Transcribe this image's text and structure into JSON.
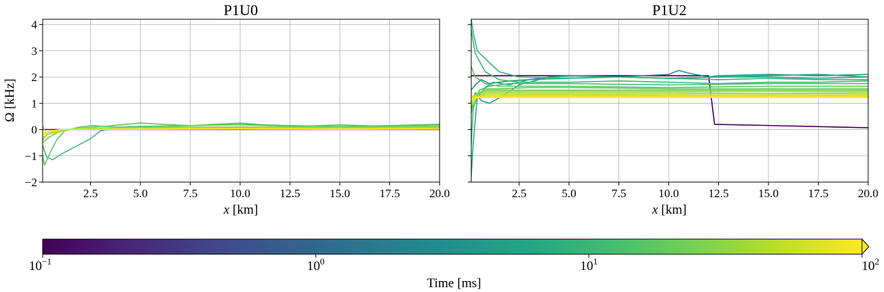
{
  "chart_data": [
    {
      "type": "line",
      "title": "P1U0",
      "xlabel_var": "x",
      "xlabel_unit": " [km]",
      "ylabel": "Ω [kHz]",
      "xlim": [
        0.1,
        20.0
      ],
      "ylim": [
        -2,
        4.2
      ],
      "xticks": [
        2.5,
        5.0,
        7.5,
        10.0,
        12.5,
        15.0,
        17.5,
        20.0
      ],
      "xtick_labels": [
        "2.5",
        "5.0",
        "7.5",
        "10.0",
        "12.5",
        "15.0",
        "17.5",
        "20.0"
      ],
      "yticks": [
        -2,
        -1,
        0,
        1,
        2,
        3,
        4
      ],
      "ytick_labels": [
        "−2",
        "−1",
        "0",
        "1",
        "2",
        "3",
        "4"
      ],
      "grid": true,
      "series": [
        {
          "time_ms": 0.1,
          "x": [
            0.1,
            2.0,
            20.0
          ],
          "y": [
            0.0,
            0.0,
            0.0
          ]
        },
        {
          "time_ms": 12,
          "x": [
            0.1,
            0.3,
            0.6,
            1.0,
            1.5,
            2.0,
            2.5,
            3.0,
            4.0,
            5.0,
            7.5,
            10.0,
            12.5,
            15.0,
            17.5,
            20.0
          ],
          "y": [
            -0.6,
            -1.05,
            -1.15,
            -0.95,
            -0.75,
            -0.55,
            -0.35,
            -0.05,
            0.1,
            0.12,
            0.15,
            0.2,
            0.15,
            0.12,
            0.15,
            0.2
          ]
        },
        {
          "time_ms": 16,
          "x": [
            0.1,
            0.2,
            0.4,
            0.8,
            1.2,
            2.0,
            2.6,
            3.2,
            4.0,
            5.0,
            6.0,
            7.5,
            10.0,
            12.5,
            15.0,
            17.5,
            20.0
          ],
          "y": [
            -1.0,
            -1.35,
            -1.0,
            -0.4,
            -0.05,
            0.1,
            0.15,
            0.12,
            0.18,
            0.25,
            0.2,
            0.15,
            0.25,
            0.1,
            0.18,
            0.12,
            0.2
          ]
        },
        {
          "time_ms": 22,
          "x": [
            0.1,
            0.4,
            1.0,
            2.0,
            3.0,
            5.0,
            7.5,
            10.0,
            12.5,
            15.0,
            17.5,
            20.0
          ],
          "y": [
            -0.5,
            -0.3,
            -0.05,
            0.05,
            0.12,
            0.08,
            0.15,
            0.18,
            0.12,
            0.1,
            0.12,
            0.15
          ]
        },
        {
          "time_ms": 30,
          "x": [
            0.1,
            0.3,
            0.8,
            1.5,
            2.5,
            5.0,
            10.0,
            15.0,
            20.0
          ],
          "y": [
            -0.4,
            -0.2,
            -0.05,
            0.02,
            0.05,
            0.08,
            0.1,
            0.08,
            0.1
          ]
        },
        {
          "time_ms": 40,
          "x": [
            0.1,
            0.3,
            0.8,
            1.5,
            2.5,
            5.0,
            10.0,
            15.0,
            20.0
          ],
          "y": [
            0.15,
            -0.2,
            -0.1,
            0.0,
            0.03,
            0.05,
            0.06,
            0.05,
            0.06
          ]
        },
        {
          "time_ms": 55,
          "x": [
            0.1,
            0.4,
            1.0,
            2.0,
            5.0,
            10.0,
            15.0,
            20.0
          ],
          "y": [
            -0.3,
            -0.15,
            0.0,
            0.02,
            0.03,
            0.05,
            0.04,
            0.05
          ]
        },
        {
          "time_ms": 75,
          "x": [
            0.1,
            0.5,
            1.0,
            2.0,
            5.0,
            10.0,
            15.0,
            20.0
          ],
          "y": [
            -0.2,
            -0.1,
            0.0,
            0.0,
            0.02,
            0.03,
            0.02,
            0.03
          ]
        },
        {
          "time_ms": 100,
          "x": [
            0.1,
            0.5,
            1.0,
            2.0,
            5.0,
            10.0,
            15.0,
            20.0
          ],
          "y": [
            -0.15,
            -0.05,
            0.0,
            0.01,
            0.01,
            0.02,
            0.01,
            0.02
          ]
        }
      ]
    },
    {
      "type": "line",
      "title": "P1U2",
      "xlabel_var": "x",
      "xlabel_unit": " [km]",
      "ylabel": "",
      "xlim": [
        0.1,
        20.0
      ],
      "ylim": [
        -2,
        4.2
      ],
      "xticks": [
        2.5,
        5.0,
        7.5,
        10.0,
        12.5,
        15.0,
        17.5,
        20.0
      ],
      "xtick_labels": [
        "2.5",
        "5.0",
        "7.5",
        "10.0",
        "12.5",
        "15.0",
        "17.5",
        "20.0"
      ],
      "yticks": [
        -2,
        -1,
        0,
        1,
        2,
        3,
        4
      ],
      "grid": true,
      "series": [
        {
          "time_ms": 0.1,
          "x": [
            0.1,
            12.0,
            12.3,
            20.0
          ],
          "y": [
            2.05,
            2.05,
            0.2,
            0.07
          ]
        },
        {
          "time_ms": 3,
          "x": [
            0.1,
            0.3,
            0.6,
            1.0,
            2.0,
            3.0,
            4.0,
            5.0,
            7.5,
            10.0,
            10.5,
            11.0,
            12.0,
            12.5,
            15.0,
            17.5,
            20.0
          ],
          "y": [
            1.5,
            1.7,
            1.9,
            1.75,
            1.85,
            1.9,
            2.0,
            2.05,
            2.0,
            2.1,
            2.25,
            2.15,
            2.0,
            2.05,
            2.1,
            2.05,
            2.1
          ]
        },
        {
          "time_ms": 5,
          "x": [
            0.1,
            0.3,
            0.6,
            1.0,
            1.5,
            2.5,
            4.0,
            5.5,
            7.5,
            10.0,
            12.5,
            15.0,
            17.5,
            20.0
          ],
          "y": [
            0.8,
            1.4,
            1.1,
            1.0,
            1.2,
            1.7,
            2.0,
            2.05,
            2.0,
            1.95,
            2.0,
            2.05,
            2.1,
            2.0
          ]
        },
        {
          "time_ms": 7,
          "x": [
            0.1,
            0.2,
            0.4,
            0.8,
            1.2,
            2.0,
            3.0,
            5.0,
            7.5,
            10.0,
            12.5,
            15.0,
            17.5,
            20.0
          ],
          "y": [
            -1.8,
            -0.5,
            1.2,
            1.6,
            1.8,
            1.7,
            1.9,
            1.95,
            2.0,
            1.95,
            2.0,
            2.0,
            1.95,
            2.0
          ]
        },
        {
          "time_ms": 9,
          "x": [
            0.1,
            0.2,
            0.4,
            0.8,
            1.5,
            2.5,
            5.0,
            7.5,
            10.0,
            12.5,
            15.0,
            17.5,
            20.0
          ],
          "y": [
            4.2,
            3.7,
            3.0,
            2.7,
            2.2,
            2.0,
            1.95,
            2.0,
            1.95,
            1.9,
            1.95,
            1.9,
            1.9
          ]
        },
        {
          "time_ms": 11,
          "x": [
            0.1,
            0.3,
            0.8,
            1.5,
            2.5,
            5.0,
            7.5,
            10.0,
            12.5,
            15.0,
            17.5,
            20.0
          ],
          "y": [
            3.8,
            2.9,
            2.2,
            1.9,
            1.8,
            1.8,
            1.85,
            1.8,
            1.75,
            1.8,
            1.8,
            1.85
          ]
        },
        {
          "time_ms": 13,
          "x": [
            0.1,
            0.2,
            0.5,
            1.0,
            2.0,
            5.0,
            10.0,
            15.0,
            20.0
          ],
          "y": [
            -0.6,
            0.8,
            1.5,
            1.65,
            1.75,
            1.75,
            1.7,
            1.75,
            1.75
          ]
        },
        {
          "time_ms": 16,
          "x": [
            0.1,
            0.3,
            0.8,
            1.5,
            3.0,
            5.0,
            10.0,
            15.0,
            20.0
          ],
          "y": [
            2.4,
            2.0,
            1.75,
            1.65,
            1.65,
            1.65,
            1.6,
            1.65,
            1.65
          ]
        },
        {
          "time_ms": 20,
          "x": [
            0.1,
            0.3,
            0.8,
            1.5,
            3.0,
            5.0,
            10.0,
            15.0,
            20.0
          ],
          "y": [
            0.6,
            1.3,
            1.55,
            1.55,
            1.6,
            1.6,
            1.55,
            1.55,
            1.55
          ]
        },
        {
          "time_ms": 25,
          "x": [
            0.1,
            0.3,
            0.8,
            1.5,
            3.0,
            5.0,
            10.0,
            15.0,
            20.0
          ],
          "y": [
            1.0,
            1.35,
            1.5,
            1.5,
            1.5,
            1.5,
            1.5,
            1.5,
            1.5
          ]
        },
        {
          "time_ms": 32,
          "x": [
            0.1,
            0.3,
            0.8,
            1.5,
            3.0,
            5.0,
            10.0,
            15.0,
            20.0
          ],
          "y": [
            1.2,
            1.3,
            1.45,
            1.45,
            1.45,
            1.45,
            1.45,
            1.45,
            1.45
          ]
        },
        {
          "time_ms": 40,
          "x": [
            0.1,
            0.3,
            0.8,
            1.5,
            3.0,
            5.0,
            10.0,
            15.0,
            20.0
          ],
          "y": [
            1.1,
            1.2,
            1.4,
            1.4,
            1.4,
            1.4,
            1.4,
            1.38,
            1.4
          ]
        },
        {
          "time_ms": 50,
          "x": [
            0.1,
            0.3,
            0.8,
            1.5,
            3.0,
            5.0,
            10.0,
            15.0,
            20.0
          ],
          "y": [
            0.9,
            1.2,
            1.35,
            1.35,
            1.35,
            1.35,
            1.35,
            1.35,
            1.35
          ]
        },
        {
          "time_ms": 62,
          "x": [
            0.1,
            0.3,
            0.8,
            1.5,
            3.0,
            5.0,
            10.0,
            15.0,
            20.0
          ],
          "y": [
            1.3,
            1.25,
            1.3,
            1.3,
            1.32,
            1.32,
            1.3,
            1.3,
            1.3
          ]
        },
        {
          "time_ms": 75,
          "x": [
            0.1,
            0.3,
            0.8,
            1.5,
            3.0,
            5.0,
            10.0,
            15.0,
            20.0
          ],
          "y": [
            1.0,
            1.2,
            1.28,
            1.28,
            1.28,
            1.28,
            1.27,
            1.27,
            1.27
          ]
        },
        {
          "time_ms": 88,
          "x": [
            0.1,
            0.3,
            0.8,
            1.5,
            3.0,
            5.0,
            10.0,
            15.0,
            20.0
          ],
          "y": [
            1.1,
            1.2,
            1.25,
            1.25,
            1.25,
            1.25,
            1.25,
            1.25,
            1.25
          ]
        },
        {
          "time_ms": 100,
          "x": [
            0.1,
            0.3,
            0.8,
            1.5,
            3.0,
            5.0,
            10.0,
            15.0,
            20.0
          ],
          "y": [
            1.2,
            1.22,
            1.22,
            1.22,
            1.22,
            1.22,
            1.22,
            1.22,
            1.22
          ]
        }
      ]
    }
  ],
  "colorbar": {
    "label": "Time [ms]",
    "scale": "log",
    "range": [
      0.1,
      100
    ],
    "extend": "max",
    "colormap": "viridis",
    "ticks": [
      0.1,
      1,
      10,
      100
    ],
    "tick_bases": [
      "10",
      "10",
      "10",
      "10"
    ],
    "tick_exponents": [
      "−1",
      "0",
      "1",
      "2"
    ],
    "colormap_stops": [
      "#440154",
      "#482475",
      "#414487",
      "#355f8d",
      "#2a788e",
      "#21918c",
      "#22a884",
      "#44bf70",
      "#7ad151",
      "#bddf26",
      "#fde725"
    ]
  }
}
